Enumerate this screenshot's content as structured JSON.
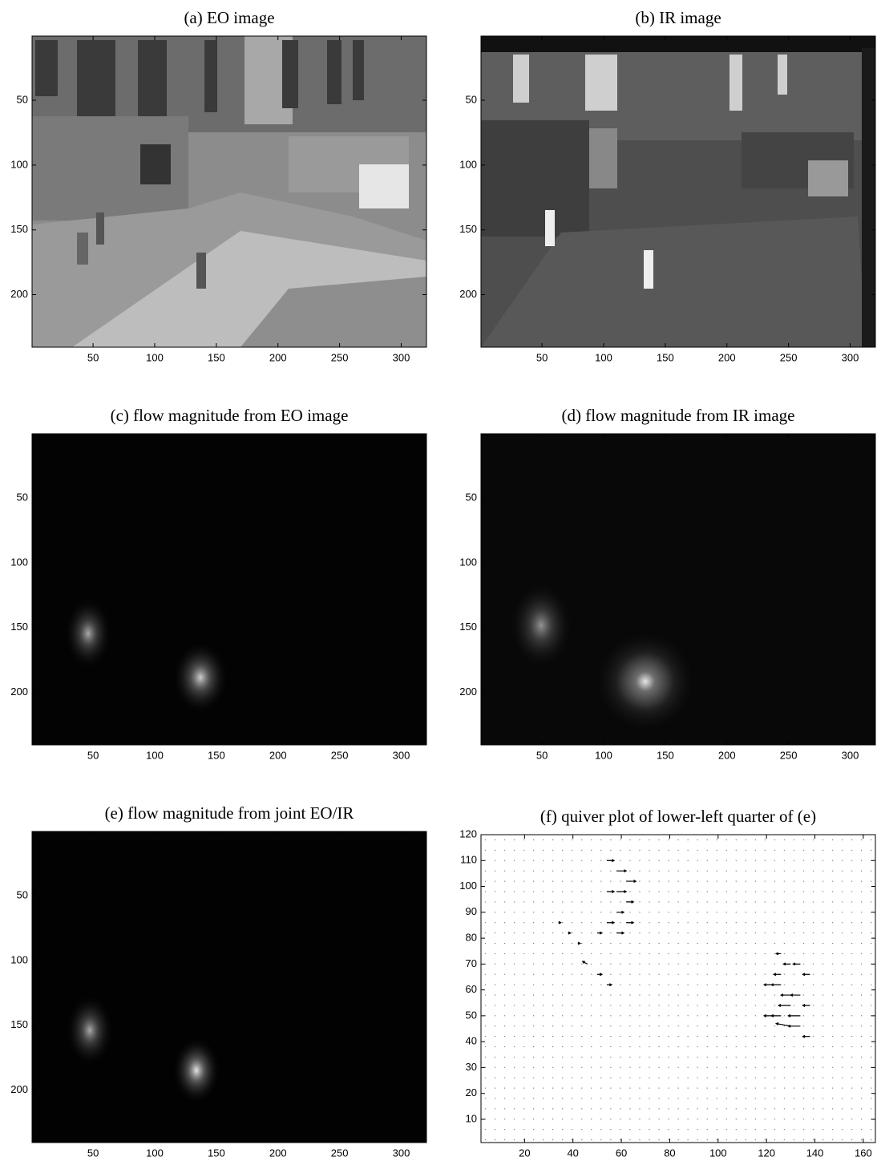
{
  "chart_data": [
    {
      "type": "image",
      "title": "(a) EO image",
      "xlim": [
        0.5,
        320.5
      ],
      "ylim": [
        0.5,
        240.5
      ],
      "y_reversed": true,
      "xticks": [
        50,
        100,
        150,
        200,
        250,
        300
      ],
      "yticks": [
        50,
        100,
        150,
        200
      ]
    },
    {
      "type": "image",
      "title": "(b) IR image",
      "xlim": [
        0.5,
        320.5
      ],
      "ylim": [
        0.5,
        240.5
      ],
      "y_reversed": true,
      "xticks": [
        50,
        100,
        150,
        200,
        250,
        300
      ],
      "yticks": [
        50,
        100,
        150,
        200
      ]
    },
    {
      "type": "image",
      "title": "(c) flow magnitude from EO image",
      "xlim": [
        0.5,
        320.5
      ],
      "ylim": [
        0.5,
        240.5
      ],
      "y_reversed": true,
      "xticks": [
        50,
        100,
        150,
        200,
        250,
        300
      ],
      "yticks": [
        50,
        100,
        150,
        200
      ]
    },
    {
      "type": "image",
      "title": "(d) flow magnitude from IR image",
      "xlim": [
        0.5,
        320.5
      ],
      "ylim": [
        0.5,
        240.5
      ],
      "y_reversed": true,
      "xticks": [
        50,
        100,
        150,
        200,
        250,
        300
      ],
      "yticks": [
        50,
        100,
        150,
        200
      ]
    },
    {
      "type": "image",
      "title": "(e) flow magnitude from joint EO/IR",
      "xlim": [
        0.5,
        320.5
      ],
      "ylim": [
        0.5,
        240.5
      ],
      "y_reversed": true,
      "xticks": [
        50,
        100,
        150,
        200,
        250,
        300
      ],
      "yticks": [
        50,
        100,
        150,
        200
      ]
    },
    {
      "type": "quiver",
      "title": "(f) quiver plot of lower-left quarter of (e)",
      "xlim": [
        2,
        165
      ],
      "ylim": [
        1,
        120
      ],
      "y_reversed": false,
      "xticks": [
        20,
        40,
        60,
        80,
        100,
        120,
        140,
        160
      ],
      "yticks": [
        10,
        20,
        30,
        40,
        50,
        60,
        70,
        80,
        90,
        100,
        110,
        120
      ],
      "color": "#000000",
      "x": [
        54,
        58,
        62,
        54,
        58,
        62,
        58,
        62,
        34,
        38,
        42,
        50,
        54,
        58,
        46,
        50,
        54,
        126,
        130,
        134,
        138,
        122,
        126,
        130,
        134,
        138,
        122,
        126,
        130,
        134,
        126,
        130,
        134,
        138
      ],
      "y": [
        110,
        106,
        102,
        98,
        98,
        94,
        90,
        86,
        86,
        82,
        78,
        82,
        86,
        82,
        70,
        66,
        62,
        74,
        70,
        70,
        66,
        62,
        62,
        58,
        58,
        54,
        50,
        50,
        46,
        46,
        66,
        54,
        50,
        42
      ],
      "u": [
        3,
        4,
        4,
        3,
        4,
        3,
        3,
        3,
        1,
        1,
        1,
        2,
        3,
        3,
        -2,
        2,
        2,
        -2,
        -3,
        -3,
        -3,
        -3,
        -4,
        -4,
        -4,
        -3,
        -3,
        -4,
        -6,
        -5,
        -3,
        -5,
        -5,
        -3
      ],
      "v": [
        0,
        0,
        0,
        0,
        0,
        0,
        0,
        0,
        0,
        0,
        0,
        0,
        0,
        0,
        1,
        0,
        0,
        0,
        0,
        0,
        0,
        0,
        0,
        0,
        0,
        0,
        0,
        0,
        1,
        0,
        0,
        0,
        0,
        0
      ]
    }
  ]
}
